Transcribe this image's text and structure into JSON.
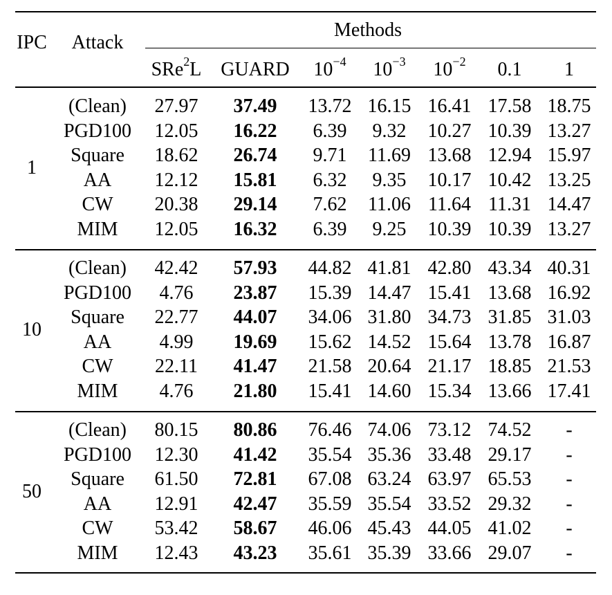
{
  "headers": {
    "ipc": "IPC",
    "attack": "Attack",
    "methods": "Methods",
    "sre2l_base": "SRe",
    "sre2l_sup": "2",
    "sre2l_tail": "L",
    "guard": "GUARD",
    "m1_base": "10",
    "m1_sup": "−4",
    "m2_base": "10",
    "m2_sup": "−3",
    "m3_base": "10",
    "m3_sup": "−2",
    "m4": "0.1",
    "m5": "1"
  },
  "groups": [
    {
      "ipc": "1",
      "rows": [
        {
          "attack": "(Clean)",
          "values": [
            "27.97",
            "37.49",
            "13.72",
            "16.15",
            "16.41",
            "17.58",
            "18.75"
          ]
        },
        {
          "attack": "PGD100",
          "values": [
            "12.05",
            "16.22",
            "6.39",
            "9.32",
            "10.27",
            "10.39",
            "13.27"
          ]
        },
        {
          "attack": "Square",
          "values": [
            "18.62",
            "26.74",
            "9.71",
            "11.69",
            "13.68",
            "12.94",
            "15.97"
          ]
        },
        {
          "attack": "AA",
          "values": [
            "12.12",
            "15.81",
            "6.32",
            "9.35",
            "10.17",
            "10.42",
            "13.25"
          ]
        },
        {
          "attack": "CW",
          "values": [
            "20.38",
            "29.14",
            "7.62",
            "11.06",
            "11.64",
            "11.31",
            "14.47"
          ]
        },
        {
          "attack": "MIM",
          "values": [
            "12.05",
            "16.32",
            "6.39",
            "9.25",
            "10.39",
            "10.39",
            "13.27"
          ]
        }
      ]
    },
    {
      "ipc": "10",
      "rows": [
        {
          "attack": "(Clean)",
          "values": [
            "42.42",
            "57.93",
            "44.82",
            "41.81",
            "42.80",
            "43.34",
            "40.31"
          ]
        },
        {
          "attack": "PGD100",
          "values": [
            "4.76",
            "23.87",
            "15.39",
            "14.47",
            "15.41",
            "13.68",
            "16.92"
          ]
        },
        {
          "attack": "Square",
          "values": [
            "22.77",
            "44.07",
            "34.06",
            "31.80",
            "34.73",
            "31.85",
            "31.03"
          ]
        },
        {
          "attack": "AA",
          "values": [
            "4.99",
            "19.69",
            "15.62",
            "14.52",
            "15.64",
            "13.78",
            "16.87"
          ]
        },
        {
          "attack": "CW",
          "values": [
            "22.11",
            "41.47",
            "21.58",
            "20.64",
            "21.17",
            "18.85",
            "21.53"
          ]
        },
        {
          "attack": "MIM",
          "values": [
            "4.76",
            "21.80",
            "15.41",
            "14.60",
            "15.34",
            "13.66",
            "17.41"
          ]
        }
      ]
    },
    {
      "ipc": "50",
      "rows": [
        {
          "attack": "(Clean)",
          "values": [
            "80.15",
            "80.86",
            "76.46",
            "74.06",
            "73.12",
            "74.52",
            "-"
          ]
        },
        {
          "attack": "PGD100",
          "values": [
            "12.30",
            "41.42",
            "35.54",
            "35.36",
            "33.48",
            "29.17",
            "-"
          ]
        },
        {
          "attack": "Square",
          "values": [
            "61.50",
            "72.81",
            "67.08",
            "63.24",
            "63.97",
            "65.53",
            "-"
          ]
        },
        {
          "attack": "AA",
          "values": [
            "12.91",
            "42.47",
            "35.59",
            "35.54",
            "33.52",
            "29.32",
            "-"
          ]
        },
        {
          "attack": "CW",
          "values": [
            "53.42",
            "58.67",
            "46.06",
            "45.43",
            "44.05",
            "41.02",
            "-"
          ]
        },
        {
          "attack": "MIM",
          "values": [
            "12.43",
            "43.23",
            "35.61",
            "35.39",
            "33.66",
            "29.07",
            "-"
          ]
        }
      ]
    }
  ]
}
